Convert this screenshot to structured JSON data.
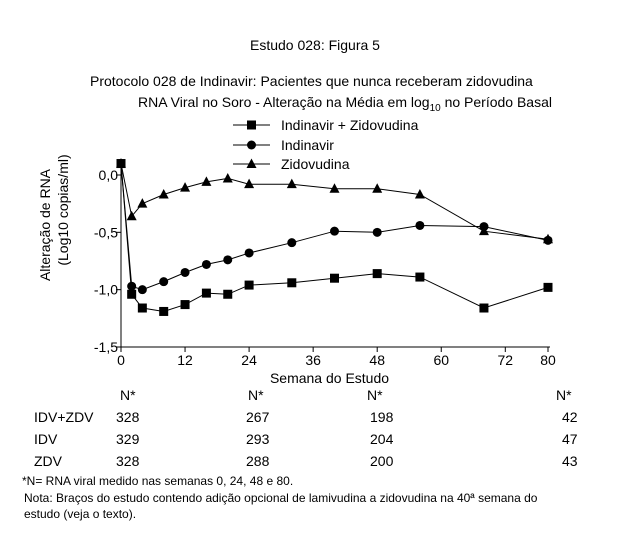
{
  "figure_title": "Estudo 028: Figura 5",
  "chart_data": {
    "type": "line",
    "title": "Protocolo 028 de Indinavir: Pacientes que nunca receberam zidovudina",
    "subtitle_pre": "RNA Viral no Soro - Alteração na Média em log",
    "subtitle_sub": "10",
    "subtitle_post": " no Período Basal",
    "xlabel": "Semana do Estudo",
    "ylabel_line1": "Alteração de RNA",
    "ylabel_line2": "(Log10 copias/ml)",
    "xlim": [
      0,
      80
    ],
    "ylim": [
      -1.5,
      0.0
    ],
    "xticks": [
      0,
      12,
      24,
      36,
      48,
      60,
      72,
      80
    ],
    "yticks": [
      0.0,
      -0.5,
      -1.0,
      -1.5
    ],
    "ytick_labels": [
      "0,0",
      "-0,5",
      "-1,0",
      "-1,5"
    ],
    "legend_position": "top-center",
    "series": [
      {
        "name": "Indinavir + Zidovudina",
        "marker": "square",
        "x": [
          0,
          2,
          4,
          8,
          12,
          16,
          20,
          24,
          32,
          40,
          48,
          56,
          68,
          80
        ],
        "y": [
          0.1,
          -1.04,
          -1.16,
          -1.19,
          -1.13,
          -1.03,
          -1.04,
          -0.96,
          -0.94,
          -0.9,
          -0.86,
          -0.89,
          -1.16,
          -0.98
        ]
      },
      {
        "name": "Indinavir",
        "marker": "circle",
        "x": [
          0,
          2,
          4,
          8,
          12,
          16,
          20,
          24,
          32,
          40,
          48,
          56,
          68,
          80
        ],
        "y": [
          0.1,
          -0.97,
          -1.0,
          -0.93,
          -0.85,
          -0.78,
          -0.74,
          -0.68,
          -0.59,
          -0.49,
          -0.5,
          -0.44,
          -0.45,
          -0.57
        ]
      },
      {
        "name": "Zidovudina",
        "marker": "triangle",
        "x": [
          0,
          2,
          4,
          8,
          12,
          16,
          20,
          24,
          32,
          40,
          48,
          56,
          68,
          80
        ],
        "y": [
          0.1,
          -0.36,
          -0.25,
          -0.17,
          -0.11,
          -0.06,
          -0.03,
          -0.08,
          -0.08,
          -0.12,
          -0.12,
          -0.17,
          -0.49,
          -0.56
        ]
      }
    ]
  },
  "n_table": {
    "header": "N*",
    "columns_week": [
      0,
      24,
      48,
      80
    ],
    "rows": [
      {
        "label": "IDV+ZDV",
        "values": [
          "328",
          "267",
          "198",
          "42"
        ]
      },
      {
        "label": "IDV",
        "values": [
          "329",
          "293",
          "204",
          "47"
        ]
      },
      {
        "label": "ZDV",
        "values": [
          "328",
          "288",
          "200",
          "43"
        ]
      }
    ]
  },
  "footnote": "*N= RNA viral medido nas semanas 0, 24, 48 e 80.",
  "note_line1": "Nota: Braços do estudo contendo adição opcional de lamivudina a zidovudina na 40ª semana do",
  "note_line2": "estudo (veja o texto)."
}
